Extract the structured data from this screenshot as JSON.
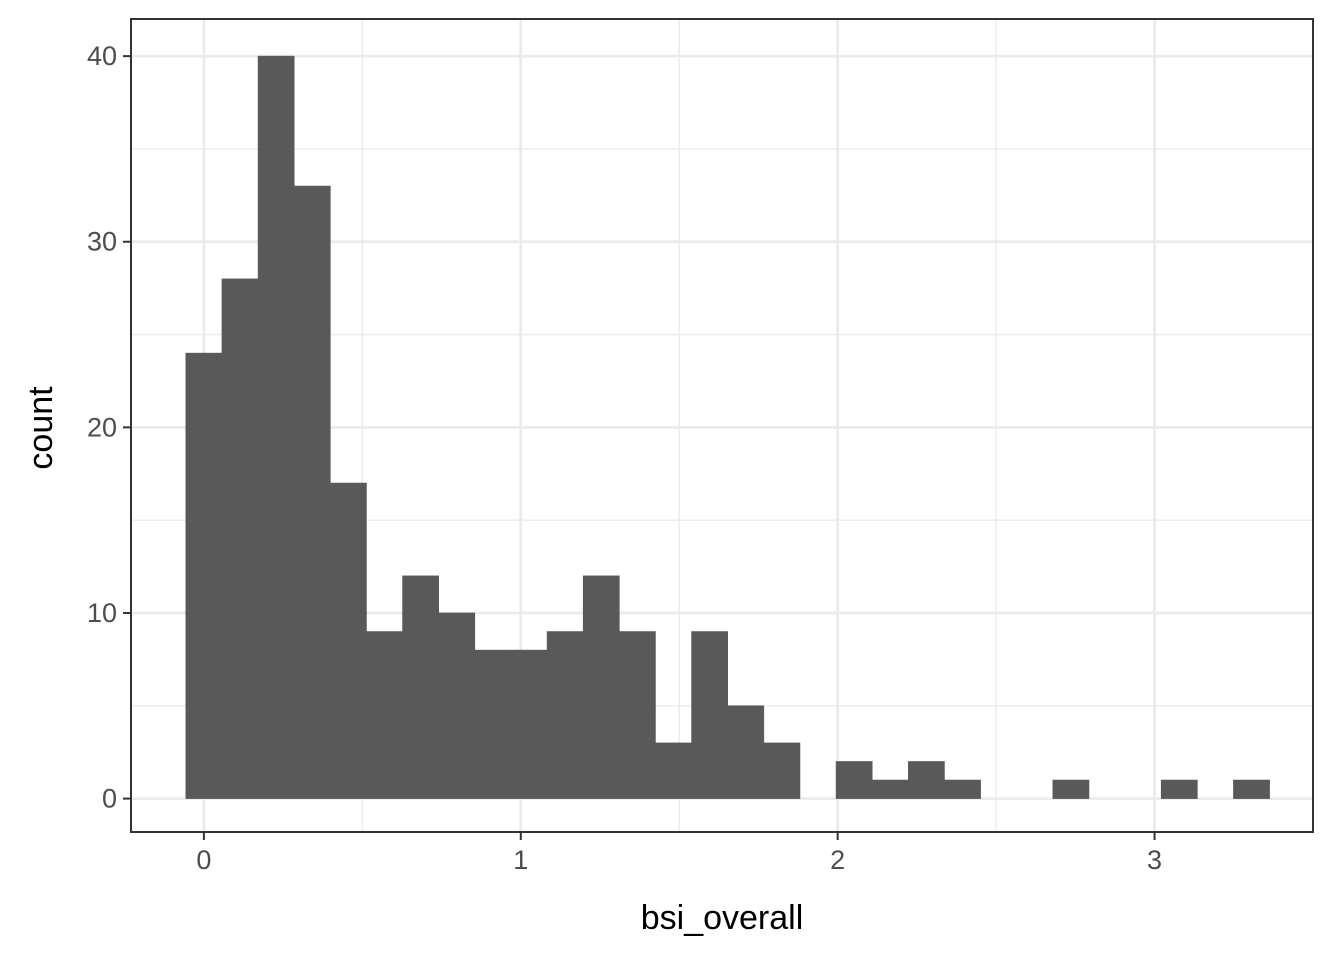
{
  "chart_data": {
    "type": "bar",
    "histogram": true,
    "xlabel": "bsi_overall",
    "ylabel": "count",
    "xlim": [
      -0.23,
      3.5
    ],
    "ylim": [
      -1.8,
      42
    ],
    "x_ticks": [
      0,
      1,
      2,
      3
    ],
    "y_ticks": [
      0,
      10,
      20,
      30,
      40
    ],
    "grid": true,
    "bar_color": "#595959",
    "bins": [
      {
        "x0": -0.057,
        "x1": 0.057,
        "count": 24
      },
      {
        "x0": 0.057,
        "x1": 0.171,
        "count": 28
      },
      {
        "x0": 0.171,
        "x1": 0.285,
        "count": 40
      },
      {
        "x0": 0.285,
        "x1": 0.399,
        "count": 33
      },
      {
        "x0": 0.399,
        "x1": 0.513,
        "count": 17
      },
      {
        "x0": 0.513,
        "x1": 0.627,
        "count": 9
      },
      {
        "x0": 0.627,
        "x1": 0.741,
        "count": 12
      },
      {
        "x0": 0.741,
        "x1": 0.855,
        "count": 10
      },
      {
        "x0": 0.855,
        "x1": 0.969,
        "count": 8
      },
      {
        "x0": 0.969,
        "x1": 1.083,
        "count": 8
      },
      {
        "x0": 1.083,
        "x1": 1.197,
        "count": 9
      },
      {
        "x0": 1.197,
        "x1": 1.311,
        "count": 12
      },
      {
        "x0": 1.311,
        "x1": 1.425,
        "count": 9
      },
      {
        "x0": 1.425,
        "x1": 1.539,
        "count": 3
      },
      {
        "x0": 1.539,
        "x1": 1.653,
        "count": 9
      },
      {
        "x0": 1.653,
        "x1": 1.767,
        "count": 5
      },
      {
        "x0": 1.767,
        "x1": 1.881,
        "count": 3
      },
      {
        "x0": 1.881,
        "x1": 1.995,
        "count": 0
      },
      {
        "x0": 1.995,
        "x1": 2.109,
        "count": 2
      },
      {
        "x0": 2.109,
        "x1": 2.223,
        "count": 1
      },
      {
        "x0": 2.223,
        "x1": 2.337,
        "count": 2
      },
      {
        "x0": 2.337,
        "x1": 2.451,
        "count": 1
      },
      {
        "x0": 2.451,
        "x1": 2.565,
        "count": 0
      },
      {
        "x0": 2.565,
        "x1": 2.679,
        "count": 0
      },
      {
        "x0": 2.679,
        "x1": 2.793,
        "count": 1
      },
      {
        "x0": 2.793,
        "x1": 2.907,
        "count": 0
      },
      {
        "x0": 2.907,
        "x1": 3.021,
        "count": 0
      },
      {
        "x0": 3.021,
        "x1": 3.135,
        "count": 1
      },
      {
        "x0": 3.135,
        "x1": 3.249,
        "count": 0
      },
      {
        "x0": 3.249,
        "x1": 3.363,
        "count": 1
      }
    ]
  }
}
